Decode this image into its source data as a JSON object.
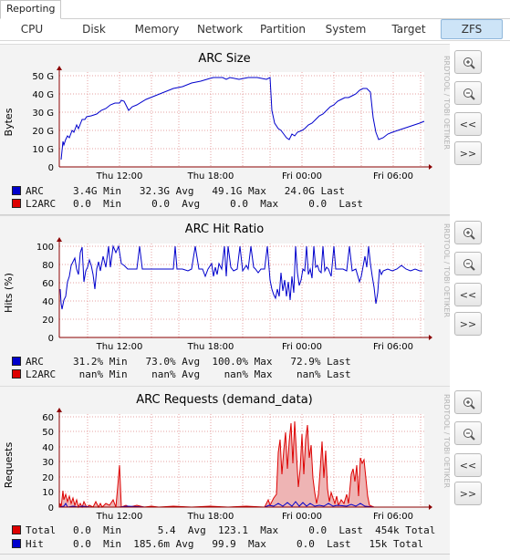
{
  "top_tab": "Reporting",
  "tabs": [
    "CPU",
    "Disk",
    "Memory",
    "Network",
    "Partition",
    "System",
    "Target",
    "ZFS"
  ],
  "active_tab": "ZFS",
  "watermark": "RRDTOOL / TOBI OETIKER",
  "buttons": {
    "back": "<<",
    "forward": ">>"
  },
  "icons": {
    "zoom_in": "zoom-in-icon",
    "zoom_out": "zoom-out-icon"
  },
  "colors": {
    "line": "#0000cc",
    "red_fill": "#e8a0a0",
    "red_line": "#dd0000",
    "grid": "#e6a0a0",
    "axis": "#8b0000",
    "active_tab": "#cde4f7"
  },
  "x_ticks": [
    "Thu 12:00",
    "Thu 18:00",
    "Fri 00:00",
    "Fri 06:00"
  ],
  "panels": [
    {
      "title": "ARC Size",
      "ylabel": "Bytes",
      "yticks": [
        "0",
        "10 G",
        "20 G",
        "30 G",
        "40 G",
        "50 G"
      ],
      "legend": [
        {
          "name": "ARC",
          "color": "#0000cc",
          "text": "3.4G Min   32.3G Avg   49.1G Max   24.0G Last"
        },
        {
          "name": "L2ARC",
          "color": "#dd0000",
          "text": "0.0  Min     0.0  Avg     0.0  Max     0.0  Last"
        }
      ]
    },
    {
      "title": "ARC Hit Ratio",
      "ylabel": "Hits (%)",
      "yticks": [
        "0",
        "20",
        "40",
        "60",
        "80",
        "100"
      ],
      "legend": [
        {
          "name": "ARC",
          "color": "#0000cc",
          "text": "31.2% Min   73.0% Avg  100.0% Max   72.9% Last"
        },
        {
          "name": "L2ARC",
          "color": "#dd0000",
          "text": " nan% Min    nan% Avg    nan% Max    nan% Last"
        }
      ]
    },
    {
      "title": "ARC Requests (demand_data)",
      "ylabel": "Requests",
      "yticks": [
        "0",
        "10",
        "20",
        "30",
        "40",
        "50",
        "60"
      ],
      "legend": [
        {
          "name": "Total",
          "color": "#dd0000",
          "text": "0.0  Min      5.4  Avg  123.1  Max     0.0  Last  454k Total"
        },
        {
          "name": "Hit",
          "color": "#0000cc",
          "text": "0.0  Min  185.6m Avg   99.9  Max     0.0  Last   15k Total"
        }
      ]
    }
  ],
  "chart_data": [
    {
      "type": "line",
      "title": "ARC Size",
      "ylabel": "Bytes",
      "unit": "G",
      "ylim": [
        0,
        50
      ],
      "x": [
        0,
        2,
        6,
        12,
        20,
        30,
        36,
        46,
        55,
        58,
        65,
        72,
        74
      ],
      "series": [
        {
          "name": "ARC",
          "values": [
            14,
            20,
            27,
            33,
            30,
            44,
            48,
            47,
            43,
            15,
            31,
            40,
            24
          ]
        }
      ]
    },
    {
      "type": "line",
      "title": "ARC Hit Ratio",
      "ylabel": "Hits (%)",
      "ylim": [
        0,
        100
      ],
      "series": [
        {
          "name": "ARC",
          "values": [
            50,
            40,
            76,
            92,
            74,
            73,
            75,
            73,
            72,
            74,
            73,
            72,
            74,
            69,
            65,
            73,
            73,
            60,
            73
          ]
        }
      ]
    },
    {
      "type": "area",
      "title": "ARC Requests (demand_data)",
      "ylabel": "Requests",
      "ylim": [
        0,
        60
      ],
      "series": [
        {
          "name": "Total",
          "values": [
            0,
            2,
            8,
            0,
            0,
            1,
            0,
            1,
            0,
            2,
            0,
            0,
            0,
            3,
            20,
            55,
            35,
            50,
            40,
            30,
            8,
            5,
            30,
            32,
            0
          ]
        },
        {
          "name": "Hit",
          "values": [
            0,
            0,
            0.5,
            0,
            0,
            0,
            0,
            0,
            0,
            0,
            0,
            0,
            0,
            0,
            0.5,
            1,
            0.5,
            1,
            0.5,
            0.5,
            0,
            0,
            0.5,
            0.5,
            0
          ]
        }
      ]
    }
  ]
}
